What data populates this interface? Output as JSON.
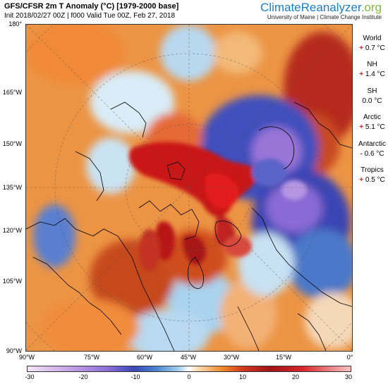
{
  "header": {
    "title": "GFS/CFSR 2m T Anomaly (°C) [1979-2000 base]",
    "subtitle": "Init 2018/02/27 00Z | f000 Valid Tue 00Z, Feb 27, 2018"
  },
  "brand": {
    "name_part1": "ClimateReanalyzer",
    "name_part2": ".org",
    "tagline": "University of Maine | Climate Change Institute"
  },
  "map": {
    "lat_labels": [
      "180°",
      "165°W",
      "150°W",
      "135°W",
      "120°W",
      "105°W",
      "90°W"
    ],
    "lon_labels": [
      "90°W",
      "75°W",
      "60°W",
      "45°W",
      "30°W",
      "15°W",
      "0°"
    ]
  },
  "stats": [
    {
      "name": "World",
      "sign": "+",
      "value": "0.7 °C"
    },
    {
      "name": "NH",
      "sign": "+",
      "value": "1.4 °C"
    },
    {
      "name": "SH",
      "sign": "",
      "value": "0.0 °C"
    },
    {
      "name": "Arctic",
      "sign": "+",
      "value": "5.1 °C"
    },
    {
      "name": "Antarctic",
      "sign": "-",
      "value": "0.6 °C"
    },
    {
      "name": "Tropics",
      "sign": "+",
      "value": "0.5 °C"
    }
  ],
  "colorbar": {
    "ticks": [
      "-30",
      "-20",
      "-10",
      "0",
      "10",
      "20",
      "30"
    ],
    "colors": {
      "cold": "#3b46b8",
      "neutral": "#ffffff",
      "warm": "#d2371c",
      "brand_blue": "#1b7fc4",
      "brand_green": "#7bbf3a",
      "sign_red": "#d8261e"
    }
  }
}
